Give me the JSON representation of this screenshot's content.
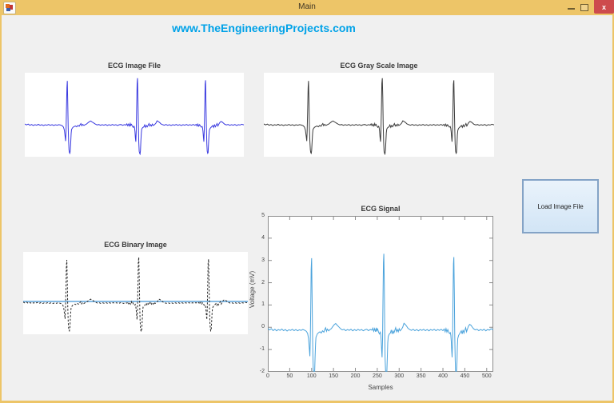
{
  "window": {
    "title": "Main",
    "close_glyph": "x"
  },
  "header": {
    "link_text": "www.TheEngineeringProjects.com",
    "link_color": "#00a2e8"
  },
  "plots": {
    "image_file": {
      "title": "ECG Image File",
      "line_color": "#3a3ae0"
    },
    "grayscale": {
      "title": "ECG Gray Scale Image",
      "line_color": "#3c3c3c"
    },
    "binary": {
      "title": "ECG Binary Image",
      "line_color": "#262626",
      "threshold_line_color": "#74b2e3"
    },
    "signal": {
      "title": "ECG Signal",
      "xlabel": "Samples",
      "ylabel": "Voltage (mV)",
      "line_color": "#4ba3dc"
    }
  },
  "button": {
    "label": "Load Image File"
  },
  "colors": {
    "titlebar": "#edc568",
    "close_button": "#cd4b4d",
    "content_bg": "#f0f0f0",
    "axis_box": "#8c8c8c",
    "tick_text": "#464646"
  },
  "chart_data": {
    "type": "line",
    "title": "ECG Signal",
    "xlabel": "Samples",
    "ylabel": "Voltage (mV)",
    "xlim": [
      0,
      515
    ],
    "ylim": [
      -2,
      5
    ],
    "xticks": [
      0,
      50,
      100,
      150,
      200,
      250,
      300,
      350,
      400,
      450,
      500
    ],
    "yticks": [
      -2,
      -1,
      0,
      1,
      2,
      3,
      4,
      5
    ],
    "grid": false,
    "legend": null,
    "image_view_ylim": [
      -2.45,
      3.7
    ],
    "series": [
      {
        "name": "ECG",
        "color": "#4ba3dc",
        "points": [
          [
            0,
            -0.05
          ],
          [
            4,
            -0.12
          ],
          [
            8,
            -0.06
          ],
          [
            12,
            -0.15
          ],
          [
            16,
            -0.09
          ],
          [
            20,
            -0.16
          ],
          [
            24,
            -0.1
          ],
          [
            28,
            -0.14
          ],
          [
            32,
            -0.08
          ],
          [
            36,
            -0.15
          ],
          [
            40,
            -0.1
          ],
          [
            44,
            -0.17
          ],
          [
            48,
            -0.11
          ],
          [
            52,
            -0.14
          ],
          [
            56,
            -0.09
          ],
          [
            60,
            -0.15
          ],
          [
            64,
            -0.1
          ],
          [
            68,
            -0.16
          ],
          [
            72,
            -0.11
          ],
          [
            76,
            -0.14
          ],
          [
            80,
            -0.1
          ],
          [
            84,
            -0.13
          ],
          [
            88,
            -0.18
          ],
          [
            91,
            -0.28
          ],
          [
            93,
            -0.5
          ],
          [
            95,
            -1.0
          ],
          [
            96,
            -1.3
          ],
          [
            97,
            -0.6
          ],
          [
            98,
            0.9
          ],
          [
            99,
            2.6
          ],
          [
            100,
            3.1
          ],
          [
            101,
            1.6
          ],
          [
            102,
            -0.3
          ],
          [
            103,
            -1.3
          ],
          [
            104,
            -1.95
          ],
          [
            105,
            -2.15
          ],
          [
            106,
            -2.2
          ],
          [
            107,
            -2.0
          ],
          [
            108,
            -1.35
          ],
          [
            109,
            -0.75
          ],
          [
            110,
            -0.45
          ],
          [
            113,
            -0.3
          ],
          [
            116,
            -0.24
          ],
          [
            119,
            -0.2
          ],
          [
            122,
            -0.26
          ],
          [
            125,
            -0.16
          ],
          [
            128,
            -0.22
          ],
          [
            130,
            -0.1
          ],
          [
            132,
            -0.02
          ],
          [
            134,
            -0.18
          ],
          [
            136,
            -0.08
          ],
          [
            139,
            -0.16
          ],
          [
            142,
            -0.1
          ],
          [
            145,
            -0.06
          ],
          [
            148,
            0.02
          ],
          [
            152,
            0.12
          ],
          [
            155,
            0.17
          ],
          [
            158,
            0.1
          ],
          [
            162,
            0.02
          ],
          [
            166,
            -0.06
          ],
          [
            170,
            -0.12
          ],
          [
            174,
            -0.09
          ],
          [
            178,
            -0.15
          ],
          [
            182,
            -0.1
          ],
          [
            186,
            -0.14
          ],
          [
            190,
            -0.09
          ],
          [
            194,
            -0.16
          ],
          [
            198,
            -0.1
          ],
          [
            202,
            -0.15
          ],
          [
            206,
            -0.09
          ],
          [
            210,
            -0.14
          ],
          [
            214,
            -0.1
          ],
          [
            218,
            -0.16
          ],
          [
            222,
            -0.11
          ],
          [
            226,
            -0.09
          ],
          [
            230,
            -0.15
          ],
          [
            234,
            -0.1
          ],
          [
            238,
            -0.13
          ],
          [
            240,
            -0.04
          ],
          [
            242,
            -0.18
          ],
          [
            244,
            -0.06
          ],
          [
            246,
            -0.2
          ],
          [
            248,
            -0.02
          ],
          [
            249,
            -0.16
          ],
          [
            251,
            -0.08
          ],
          [
            253,
            -0.22
          ],
          [
            255,
            -0.3
          ],
          [
            257,
            -0.22
          ],
          [
            258,
            -0.34
          ],
          [
            259,
            -0.6
          ],
          [
            260,
            -1.05
          ],
          [
            261,
            -1.35
          ],
          [
            262,
            -0.55
          ],
          [
            263,
            1.1
          ],
          [
            264,
            2.9
          ],
          [
            265,
            3.3
          ],
          [
            266,
            1.9
          ],
          [
            267,
            -0.1
          ],
          [
            268,
            -1.4
          ],
          [
            269,
            -2.05
          ],
          [
            270,
            -2.2
          ],
          [
            271,
            -2.25
          ],
          [
            272,
            -2.0
          ],
          [
            273,
            -1.3
          ],
          [
            274,
            -0.7
          ],
          [
            275,
            -0.42
          ],
          [
            277,
            -0.32
          ],
          [
            280,
            -0.26
          ],
          [
            282,
            -0.12
          ],
          [
            284,
            -0.3
          ],
          [
            286,
            -0.16
          ],
          [
            288,
            -0.26
          ],
          [
            290,
            -0.14
          ],
          [
            292,
            -0.02
          ],
          [
            294,
            -0.2
          ],
          [
            296,
            -0.1
          ],
          [
            298,
            -0.2
          ],
          [
            300,
            -0.06
          ],
          [
            302,
            -0.16
          ],
          [
            305,
            -0.1
          ],
          [
            308,
            0.0
          ],
          [
            311,
            0.18
          ],
          [
            314,
            0.13
          ],
          [
            317,
            0.05
          ],
          [
            320,
            -0.04
          ],
          [
            324,
            -0.1
          ],
          [
            328,
            -0.14
          ],
          [
            332,
            -0.09
          ],
          [
            336,
            -0.15
          ],
          [
            340,
            -0.1
          ],
          [
            344,
            -0.16
          ],
          [
            348,
            -0.1
          ],
          [
            352,
            -0.14
          ],
          [
            356,
            -0.09
          ],
          [
            360,
            -0.15
          ],
          [
            364,
            -0.1
          ],
          [
            368,
            -0.16
          ],
          [
            372,
            -0.1
          ],
          [
            376,
            -0.14
          ],
          [
            380,
            -0.09
          ],
          [
            384,
            -0.15
          ],
          [
            388,
            -0.1
          ],
          [
            392,
            -0.14
          ],
          [
            396,
            -0.09
          ],
          [
            400,
            -0.15
          ],
          [
            403,
            -0.08
          ],
          [
            405,
            -0.2
          ],
          [
            407,
            -0.06
          ],
          [
            409,
            -0.22
          ],
          [
            411,
            -0.1
          ],
          [
            413,
            -0.2
          ],
          [
            415,
            -0.28
          ],
          [
            417,
            -0.24
          ],
          [
            418,
            -0.36
          ],
          [
            419,
            -0.6
          ],
          [
            420,
            -1.05
          ],
          [
            421,
            -1.35
          ],
          [
            422,
            -0.5
          ],
          [
            423,
            1.2
          ],
          [
            424,
            2.85
          ],
          [
            425,
            3.15
          ],
          [
            426,
            1.5
          ],
          [
            427,
            -0.35
          ],
          [
            428,
            -1.5
          ],
          [
            429,
            -2.05
          ],
          [
            430,
            -2.2
          ],
          [
            431,
            -2.15
          ],
          [
            432,
            -1.55
          ],
          [
            433,
            -0.85
          ],
          [
            434,
            -0.5
          ],
          [
            436,
            -0.36
          ],
          [
            439,
            -0.26
          ],
          [
            442,
            -0.16
          ],
          [
            444,
            -0.3
          ],
          [
            446,
            -0.12
          ],
          [
            448,
            -0.26
          ],
          [
            450,
            -0.14
          ],
          [
            452,
            -0.02
          ],
          [
            454,
            -0.2
          ],
          [
            456,
            -0.08
          ],
          [
            458,
            0.04
          ],
          [
            461,
            0.13
          ],
          [
            464,
            0.09
          ],
          [
            467,
            0.01
          ],
          [
            470,
            -0.07
          ],
          [
            474,
            -0.12
          ],
          [
            478,
            -0.09
          ],
          [
            482,
            -0.15
          ],
          [
            486,
            -0.1
          ],
          [
            490,
            -0.14
          ],
          [
            494,
            -0.09
          ],
          [
            498,
            -0.16
          ],
          [
            502,
            -0.1
          ],
          [
            506,
            -0.13
          ],
          [
            510,
            -0.07
          ],
          [
            515,
            -0.12
          ]
        ]
      }
    ]
  }
}
